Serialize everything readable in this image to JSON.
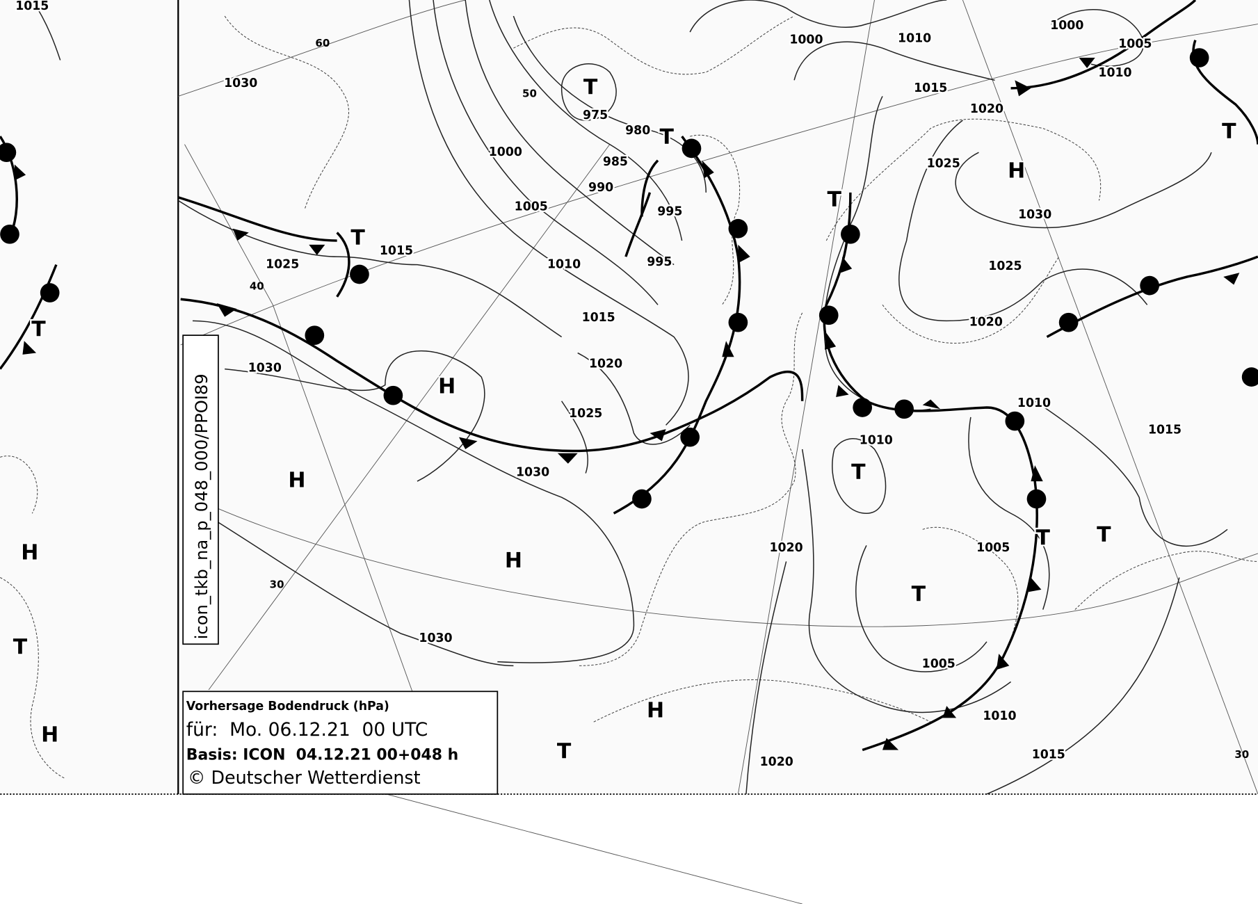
{
  "map": {
    "pressure_labels": [
      1015,
      1030,
      1025,
      1015,
      1030,
      1000,
      1005,
      1010,
      1015,
      1020,
      1025,
      1030,
      1030,
      975,
      980,
      985,
      990,
      995,
      995,
      1000,
      1010,
      1015,
      1020,
      1025,
      1030,
      1025,
      1020,
      1010,
      1010,
      1015,
      1020,
      1005,
      1005,
      1010,
      1015,
      1020,
      1000,
      1005,
      1010
    ],
    "centers": [
      "T",
      "T",
      "T",
      "H",
      "T",
      "H",
      "H",
      "H",
      "T",
      "T",
      "T",
      "T",
      "H",
      "T",
      "H",
      "T",
      "H",
      "T",
      "T"
    ],
    "grid_labels": [
      60,
      40,
      30,
      50,
      30
    ]
  },
  "product_id": "icon_tkb_na_p_048_000/PPOI89",
  "info_box": {
    "lines": [
      "Vorhersage Bodendruck (hPa)",
      "für:  Mo. 06.12.21  00 UTC",
      "Basis: ICON  04.12.21 00+048 h",
      "© Deutscher Wetterdienst"
    ]
  }
}
